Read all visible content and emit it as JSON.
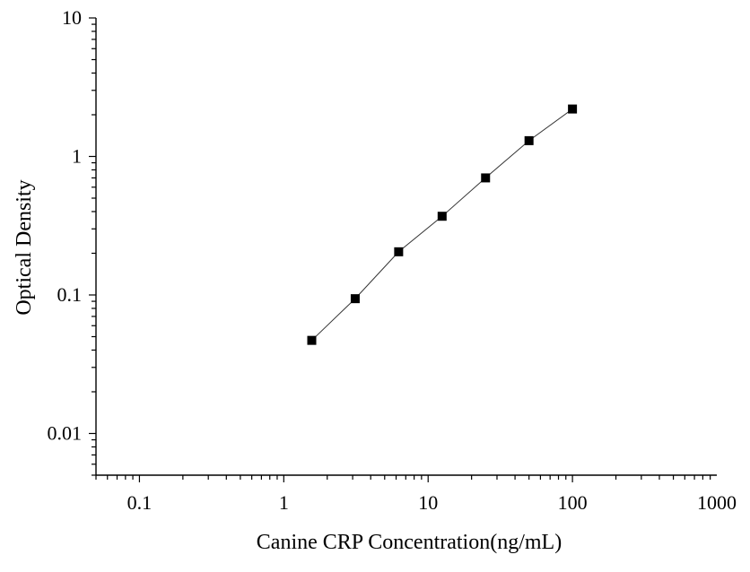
{
  "chart_data": {
    "type": "scatter",
    "xscale": "log",
    "yscale": "log",
    "xlabel": "Canine CRP Concentration(ng/mL)",
    "ylabel": "Optical Density",
    "xlim": [
      0.05,
      1000
    ],
    "ylim": [
      0.005,
      10
    ],
    "x_ticks": [
      {
        "value": 0.1,
        "label": "0.1"
      },
      {
        "value": 1,
        "label": "1"
      },
      {
        "value": 10,
        "label": "10"
      },
      {
        "value": 100,
        "label": "100"
      },
      {
        "value": 1000,
        "label": "1000"
      }
    ],
    "y_ticks": [
      {
        "value": 0.01,
        "label": "0.01"
      },
      {
        "value": 0.1,
        "label": "0.1"
      },
      {
        "value": 1,
        "label": "1"
      },
      {
        "value": 10,
        "label": "10"
      }
    ],
    "grid": false,
    "series": [
      {
        "x": [
          1.5625,
          3.125,
          6.25,
          12.5,
          25,
          50,
          100
        ],
        "y": [
          0.047,
          0.094,
          0.205,
          0.37,
          0.7,
          1.3,
          2.2
        ],
        "marker": "square",
        "connected": true,
        "color": "#000000"
      }
    ]
  }
}
